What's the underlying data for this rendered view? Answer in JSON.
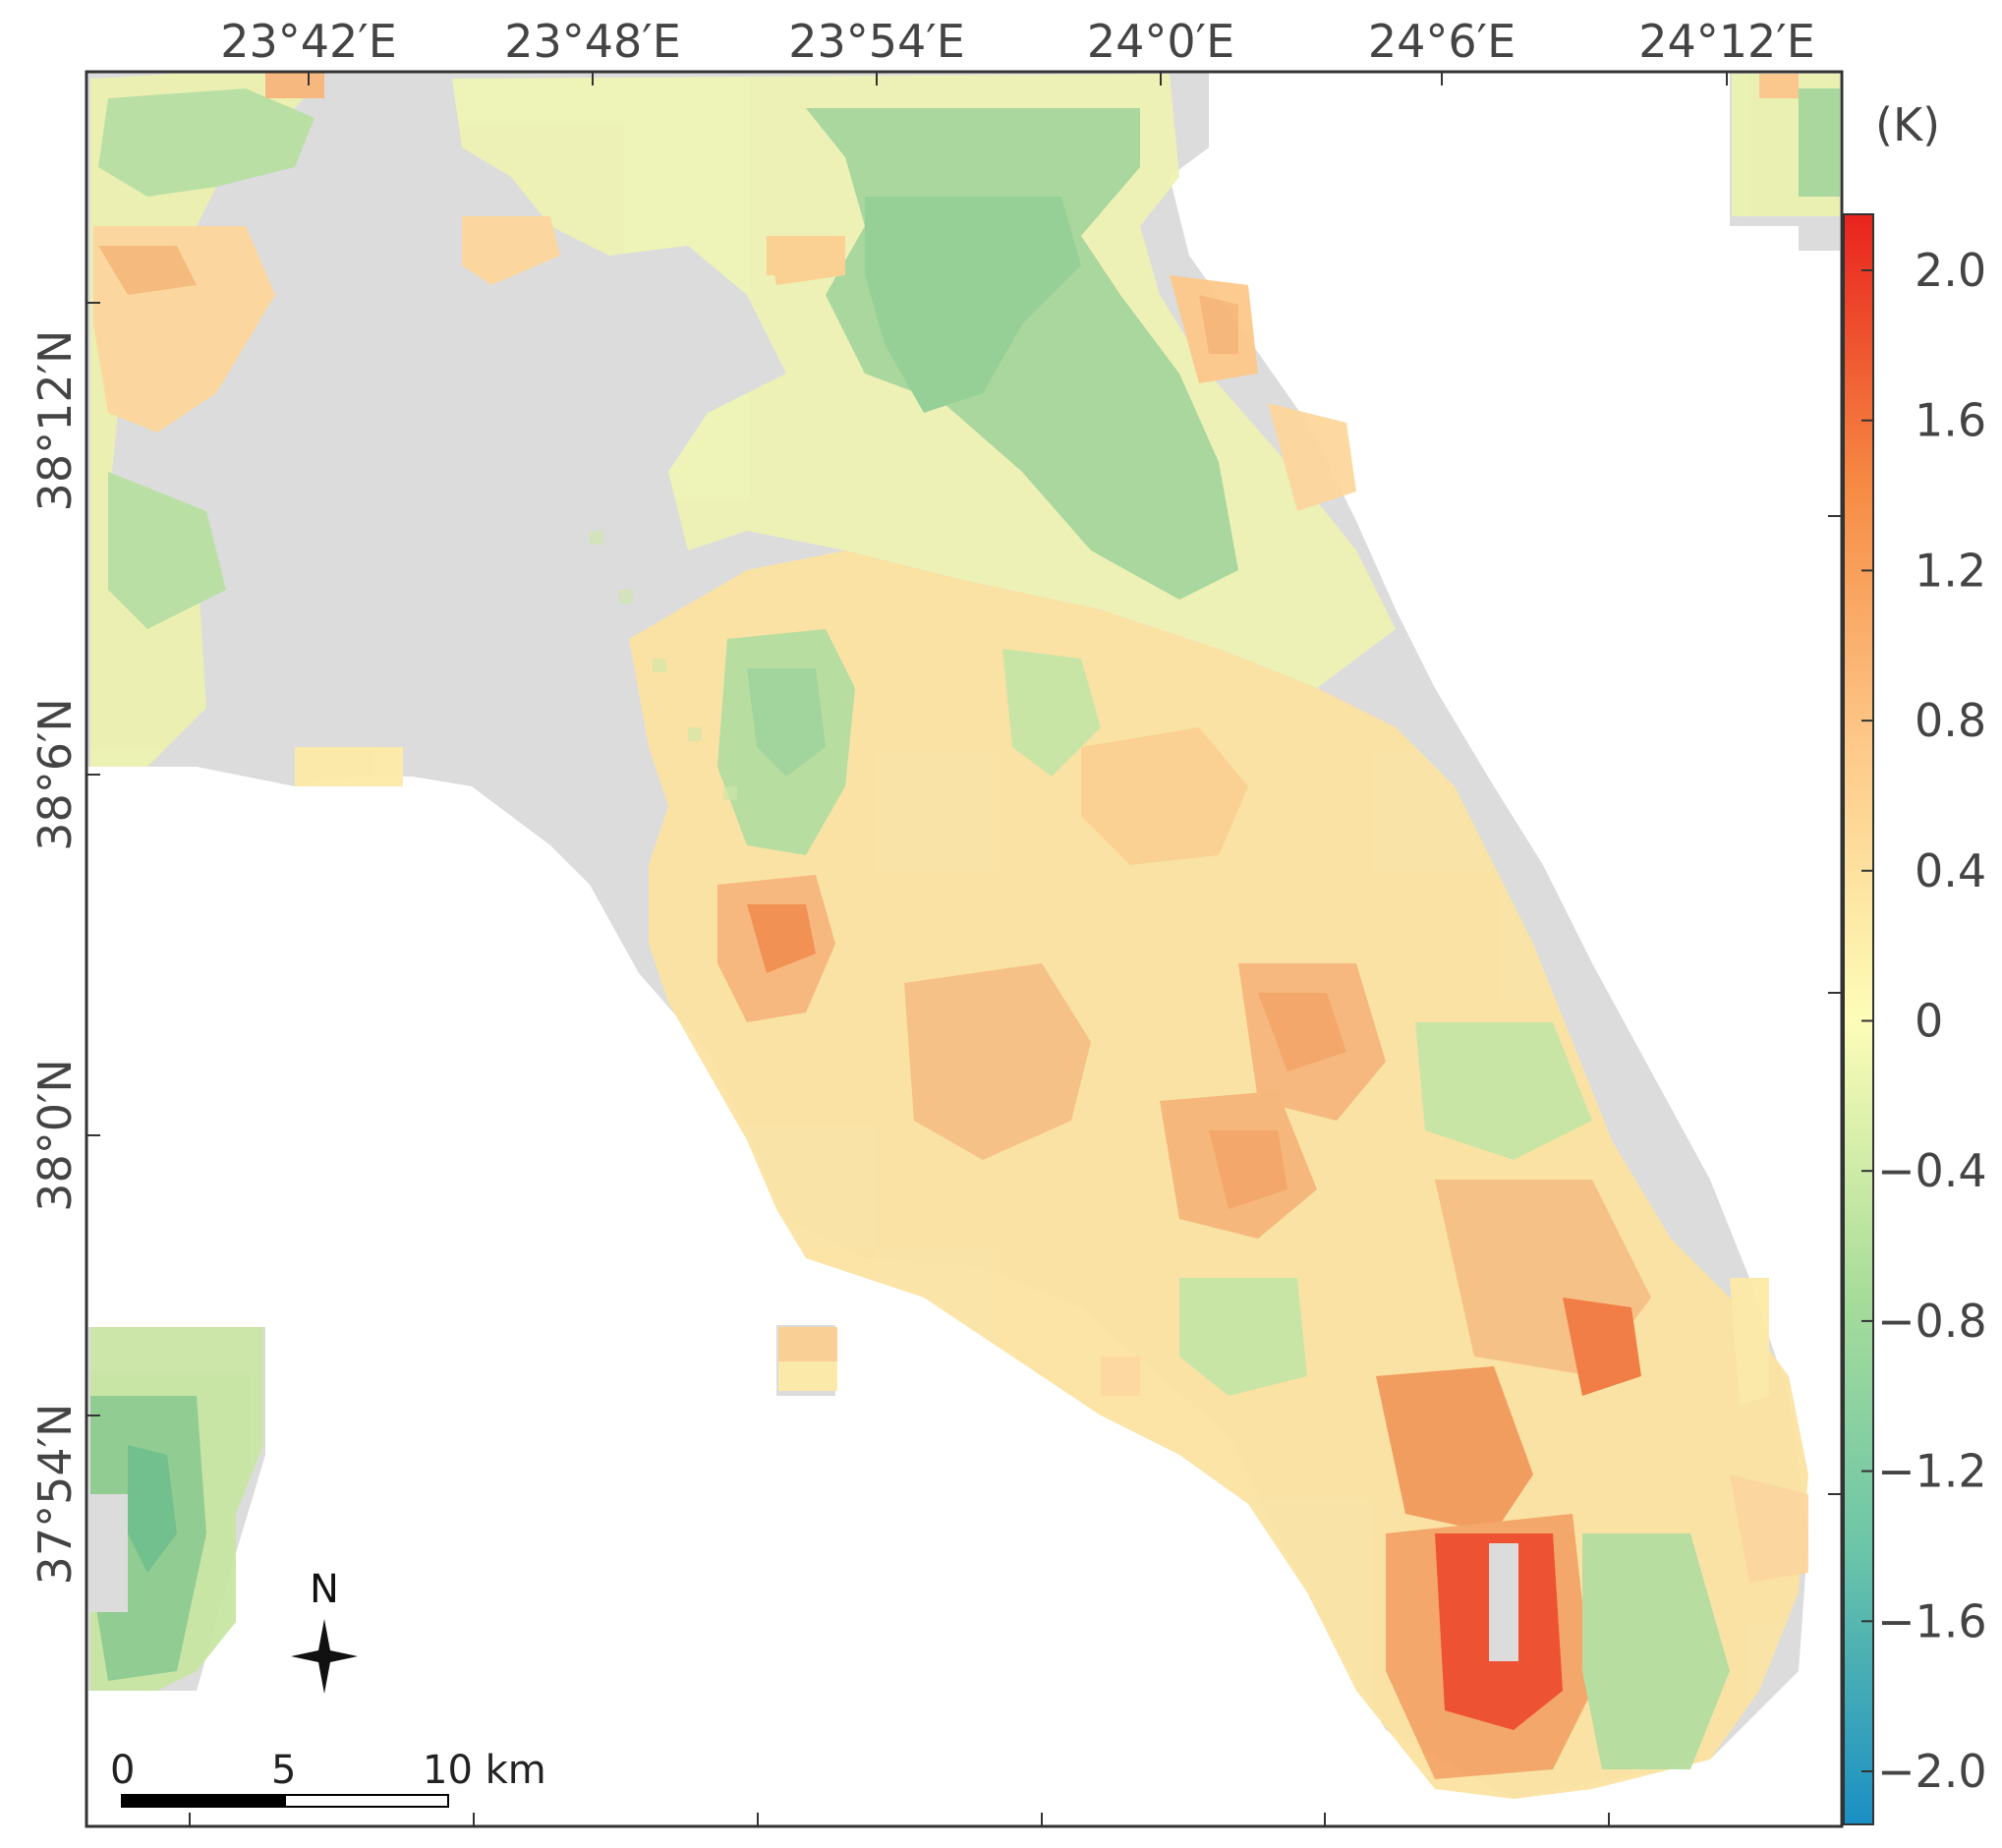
{
  "map": {
    "lon_labels": [
      "23°42′E",
      "23°48′E",
      "23°54′E",
      "24°0′E",
      "24°6′E",
      "24°12′E"
    ],
    "lat_labels": [
      "38°12′N",
      "38°6′N",
      "38°0′N",
      "37°54′N"
    ],
    "colorbar": {
      "unit": "(K)",
      "ticks": [
        "2.0",
        "1.6",
        "1.2",
        "0.8",
        "0.4",
        "0",
        "−0.4",
        "−0.8",
        "−1.2",
        "−1.6",
        "−2.0"
      ],
      "range": [
        -2.0,
        2.0
      ],
      "colors": [
        "#1a8fc4",
        "#6cc5a8",
        "#a8dc9a",
        "#fdfdb8",
        "#fdc98a",
        "#f68b44",
        "#e8231e"
      ]
    },
    "north_arrow": {
      "label": "N",
      "icon": "north-star-icon"
    },
    "scale_bar": {
      "labels": [
        "0",
        "5",
        "10 km"
      ]
    },
    "no_data_color": "#dcdcdc"
  }
}
